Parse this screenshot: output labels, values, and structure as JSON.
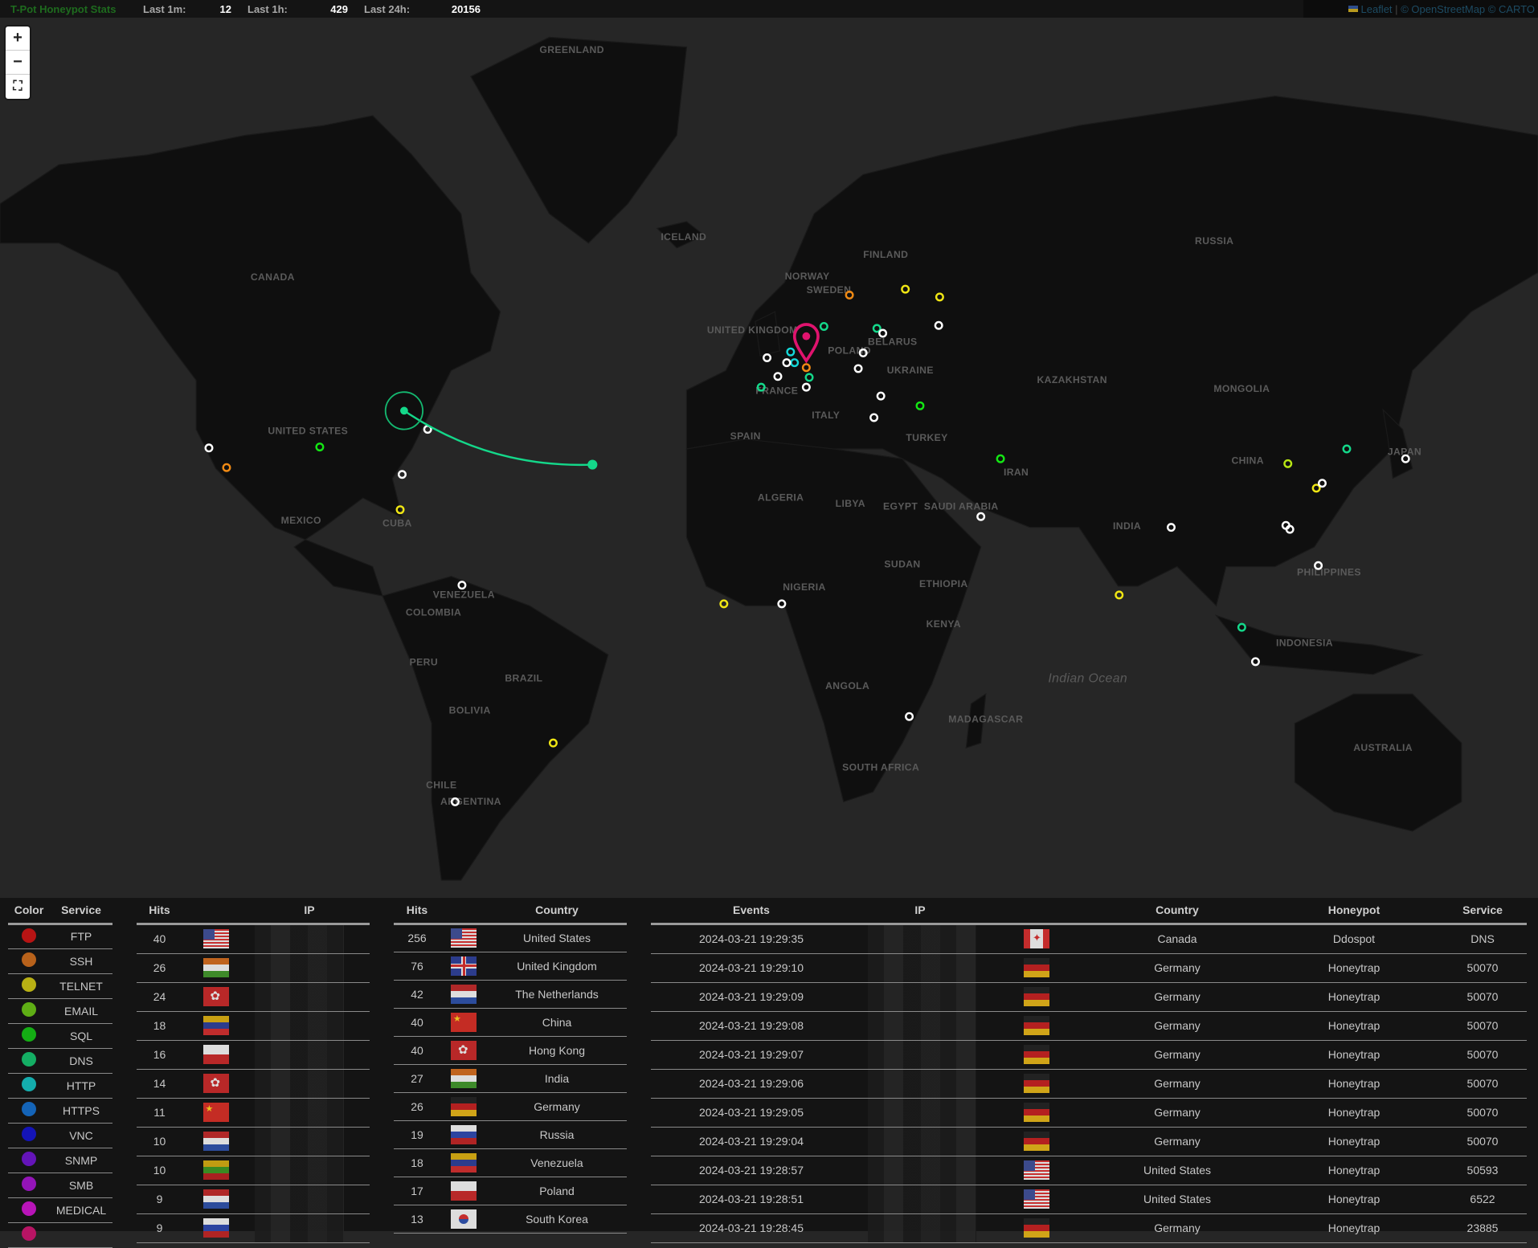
{
  "topbar": {
    "title": "T-Pot Honeypot Stats",
    "last_1m_label": "Last 1m:",
    "last_1m": "12",
    "last_1h_label": "Last 1h:",
    "last_1h": "429",
    "last_24h_label": "Last 24h:",
    "last_24h": "20156"
  },
  "attribution": {
    "leaflet": "Leaflet",
    "sep": "|",
    "osm": "© OpenStreetMap © CARTO"
  },
  "zoom_controls": {
    "zoom_in": "+",
    "zoom_out": "−",
    "fullscreen": "⛶"
  },
  "map": {
    "labels": [
      "GREENLAND",
      "CANADA",
      "UNITED STATES",
      "MEXICO",
      "CUBA",
      "VENEZUELA",
      "COLOMBIA",
      "PERU",
      "BRAZIL",
      "BOLIVIA",
      "CHILE",
      "ARGENTINA",
      "ICELAND",
      "NORWAY",
      "FINLAND",
      "SWEDEN",
      "UNITED KINGDOM",
      "FRANCE",
      "SPAIN",
      "ITALY",
      "POLAND",
      "BELARUS",
      "UKRAINE",
      "TURKEY",
      "RUSSIA",
      "KAZAKHSTAN",
      "MONGOLIA",
      "CHINA",
      "INDIA",
      "IRAN",
      "ALGERIA",
      "LIBYA",
      "EGYPT",
      "NIGERIA",
      "SUDAN",
      "ETHIOPIA",
      "KENYA",
      "ANGOLA",
      "SOUTH AFRICA",
      "MADAGASCAR",
      "AUSTRALIA",
      "INDONESIA",
      "JAPAN",
      "PHILIPPINES",
      "SAUDI ARABIA",
      "Indian Ocean"
    ],
    "attack_marker_color": "#e0136e",
    "arc_color": "#14d88a"
  },
  "legend": {
    "headers": {
      "color": "Color",
      "service": "Service"
    },
    "items": [
      {
        "service": "FTP",
        "color": "#b71414"
      },
      {
        "service": "SSH",
        "color": "#b8621b"
      },
      {
        "service": "TELNET",
        "color": "#b8b014"
      },
      {
        "service": "EMAIL",
        "color": "#5fae15"
      },
      {
        "service": "SQL",
        "color": "#14ae14"
      },
      {
        "service": "DNS",
        "color": "#14ae64"
      },
      {
        "service": "HTTP",
        "color": "#14adad"
      },
      {
        "service": "HTTPS",
        "color": "#1464b8"
      },
      {
        "service": "VNC",
        "color": "#1414b8"
      },
      {
        "service": "SNMP",
        "color": "#6414b8"
      },
      {
        "service": "SMB",
        "color": "#9414b8"
      },
      {
        "service": "MEDICAL",
        "color": "#b814b8"
      },
      {
        "service": "",
        "color": "#b81464"
      }
    ]
  },
  "ip_table": {
    "headers": {
      "hits": "Hits",
      "ip": "IP"
    },
    "rows": [
      {
        "hits": "40",
        "flag": "us"
      },
      {
        "hits": "26",
        "flag": "in"
      },
      {
        "hits": "24",
        "flag": "hk"
      },
      {
        "hits": "18",
        "flag": "ve"
      },
      {
        "hits": "16",
        "flag": "pl"
      },
      {
        "hits": "14",
        "flag": "hk"
      },
      {
        "hits": "11",
        "flag": "cn"
      },
      {
        "hits": "10",
        "flag": "nl"
      },
      {
        "hits": "10",
        "flag": "lt"
      },
      {
        "hits": "9",
        "flag": "nl"
      },
      {
        "hits": "9",
        "flag": "ru"
      }
    ]
  },
  "country_table": {
    "headers": {
      "hits": "Hits",
      "country": "Country"
    },
    "rows": [
      {
        "hits": "256",
        "flag": "us",
        "country": "United States"
      },
      {
        "hits": "76",
        "flag": "gb",
        "country": "United Kingdom"
      },
      {
        "hits": "42",
        "flag": "nl",
        "country": "The Netherlands"
      },
      {
        "hits": "40",
        "flag": "cn",
        "country": "China"
      },
      {
        "hits": "40",
        "flag": "hk",
        "country": "Hong Kong"
      },
      {
        "hits": "27",
        "flag": "in",
        "country": "India"
      },
      {
        "hits": "26",
        "flag": "de",
        "country": "Germany"
      },
      {
        "hits": "19",
        "flag": "ru",
        "country": "Russia"
      },
      {
        "hits": "18",
        "flag": "ve",
        "country": "Venezuela"
      },
      {
        "hits": "17",
        "flag": "pl",
        "country": "Poland"
      },
      {
        "hits": "13",
        "flag": "kr",
        "country": "South Korea"
      }
    ]
  },
  "events_table": {
    "headers": {
      "events": "Events",
      "ip": "IP",
      "flag": "",
      "country": "Country",
      "honeypot": "Honeypot",
      "service": "Service"
    },
    "rows": [
      {
        "time": "2024-03-21 19:29:35",
        "flag": "ca",
        "country": "Canada",
        "honeypot": "Ddospot",
        "service": "DNS"
      },
      {
        "time": "2024-03-21 19:29:10",
        "flag": "de",
        "country": "Germany",
        "honeypot": "Honeytrap",
        "service": "50070"
      },
      {
        "time": "2024-03-21 19:29:09",
        "flag": "de",
        "country": "Germany",
        "honeypot": "Honeytrap",
        "service": "50070"
      },
      {
        "time": "2024-03-21 19:29:08",
        "flag": "de",
        "country": "Germany",
        "honeypot": "Honeytrap",
        "service": "50070"
      },
      {
        "time": "2024-03-21 19:29:07",
        "flag": "de",
        "country": "Germany",
        "honeypot": "Honeytrap",
        "service": "50070"
      },
      {
        "time": "2024-03-21 19:29:06",
        "flag": "de",
        "country": "Germany",
        "honeypot": "Honeytrap",
        "service": "50070"
      },
      {
        "time": "2024-03-21 19:29:05",
        "flag": "de",
        "country": "Germany",
        "honeypot": "Honeytrap",
        "service": "50070"
      },
      {
        "time": "2024-03-21 19:29:04",
        "flag": "de",
        "country": "Germany",
        "honeypot": "Honeytrap",
        "service": "50070"
      },
      {
        "time": "2024-03-21 19:28:57",
        "flag": "us",
        "country": "United States",
        "honeypot": "Honeytrap",
        "service": "50593"
      },
      {
        "time": "2024-03-21 19:28:51",
        "flag": "us",
        "country": "United States",
        "honeypot": "Honeytrap",
        "service": "6522"
      },
      {
        "time": "2024-03-21 19:28:45",
        "flag": "de",
        "country": "Germany",
        "honeypot": "Honeytrap",
        "service": "23885"
      }
    ]
  }
}
